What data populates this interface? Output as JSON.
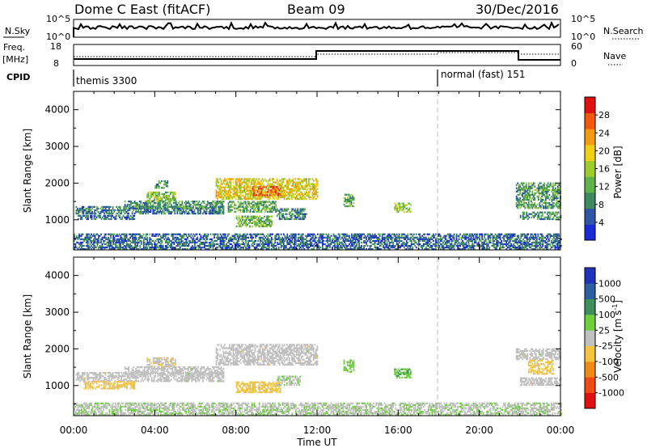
{
  "header": {
    "station": "Dome C East (fitACF)",
    "beam": "Beam 09",
    "date": "30/Dec/2016"
  },
  "status_panels": {
    "nsky_label": "N.Sky",
    "nsearch_label": "N.Search",
    "freq_label_1": "Freq.",
    "freq_label_2": "[MHz]",
    "nave_label": "Nave",
    "cpid_label": "CPID",
    "nsky_ticks": [
      "10^5",
      "10^0"
    ],
    "nsearch_ticks": [
      "10^5",
      "10^0"
    ],
    "freq_ticks": [
      "18",
      "8"
    ],
    "nave_ticks": [
      "60",
      "0"
    ],
    "cpid_segments": [
      {
        "label": "themis 3300",
        "start_hour": 0,
        "end_hour": 18
      },
      {
        "label": "normal (fast) 151",
        "start_hour": 18,
        "end_hour": 24
      }
    ]
  },
  "axes": {
    "x_ticks": [
      "00:00",
      "04:00",
      "08:00",
      "12:00",
      "16:00",
      "20:00",
      "00:00"
    ],
    "x_label": "Time UT",
    "y_label": "Slant Range [km]",
    "y_ticks": [
      "1000",
      "2000",
      "3000",
      "4000"
    ],
    "power_label": "Power [dB]",
    "power_ticks": [
      "4",
      "8",
      "12",
      "16",
      "20",
      "24",
      "28"
    ],
    "velocity_label": "Velocity [m s",
    "velocity_sup": "-1",
    "velocity_label_end": "]",
    "velocity_ticks": [
      "-1000",
      "-500",
      "-100",
      "-25",
      "25",
      "100",
      "500",
      "1000"
    ]
  },
  "colors": {
    "power_scale": [
      "#1a2bd6",
      "#2f56a6",
      "#3c8a5e",
      "#5fb34a",
      "#9ccc2e",
      "#f0d014",
      "#f29a12",
      "#ef5a10",
      "#e01010"
    ],
    "velocity_scale": [
      "#e01010",
      "#ee4a14",
      "#f08a14",
      "#f4c440",
      "#c0c0c0",
      "#6fcf3c",
      "#3f8f5a",
      "#2a5fa0",
      "#2033b8"
    ]
  },
  "chart_data": [
    {
      "type": "heatmap",
      "name": "Power",
      "x_unit": "hour UT",
      "y_unit": "km",
      "xlim": [
        0,
        24
      ],
      "ylim": [
        180,
        4500
      ],
      "clim": [
        0,
        30
      ],
      "regions": [
        {
          "t": [
            0.1,
            7.4
          ],
          "r": [
            1150,
            1350
          ],
          "v": 7
        },
        {
          "t": [
            0.2,
            3.0
          ],
          "r": [
            1000,
            1100
          ],
          "v": 6
        },
        {
          "t": [
            2.5,
            7.4
          ],
          "r": [
            1300,
            1500
          ],
          "v": 9
        },
        {
          "t": [
            3.6,
            5.0
          ],
          "r": [
            1500,
            1750
          ],
          "v": 14
        },
        {
          "t": [
            4.0,
            4.6
          ],
          "r": [
            1850,
            2050
          ],
          "v": 8
        },
        {
          "t": [
            7.0,
            12.0
          ],
          "r": [
            1550,
            2100
          ],
          "v": 18
        },
        {
          "t": [
            8.8,
            10.2
          ],
          "r": [
            1650,
            1900
          ],
          "v": 24
        },
        {
          "t": [
            7.6,
            10.0
          ],
          "r": [
            1200,
            1500
          ],
          "v": 11
        },
        {
          "t": [
            8.0,
            9.8
          ],
          "r": [
            800,
            1100
          ],
          "v": 12
        },
        {
          "t": [
            10.0,
            11.5
          ],
          "r": [
            1000,
            1300
          ],
          "v": 8
        },
        {
          "t": [
            13.3,
            13.8
          ],
          "r": [
            1350,
            1700
          ],
          "v": 11
        },
        {
          "t": [
            15.8,
            16.6
          ],
          "r": [
            1200,
            1450
          ],
          "v": 15
        },
        {
          "t": [
            21.8,
            24.0
          ],
          "r": [
            1300,
            2000
          ],
          "v": 10
        },
        {
          "t": [
            22.0,
            24.0
          ],
          "r": [
            1000,
            1200
          ],
          "v": 9
        },
        {
          "t": [
            0.0,
            24.0
          ],
          "r": [
            180,
            600
          ],
          "v": 6
        }
      ]
    },
    {
      "type": "heatmap",
      "name": "Velocity",
      "x_unit": "hour UT",
      "y_unit": "km",
      "xlim": [
        0,
        24
      ],
      "ylim": [
        180,
        4500
      ],
      "clim": [
        -1000,
        1000
      ],
      "regions": [
        {
          "t": [
            0.1,
            7.4
          ],
          "r": [
            1100,
            1350
          ],
          "v": 0
        },
        {
          "t": [
            0.5,
            3.0
          ],
          "r": [
            900,
            1100
          ],
          "v": -200
        },
        {
          "t": [
            2.5,
            7.4
          ],
          "r": [
            1300,
            1500
          ],
          "v": 0
        },
        {
          "t": [
            3.6,
            5.0
          ],
          "r": [
            1500,
            1750
          ],
          "v": -60
        },
        {
          "t": [
            7.0,
            12.0
          ],
          "r": [
            1550,
            2100
          ],
          "v": 0
        },
        {
          "t": [
            8.0,
            10.2
          ],
          "r": [
            800,
            1100
          ],
          "v": -200
        },
        {
          "t": [
            10.0,
            11.2
          ],
          "r": [
            1000,
            1250
          ],
          "v": 80
        },
        {
          "t": [
            13.3,
            13.8
          ],
          "r": [
            1350,
            1700
          ],
          "v": 200
        },
        {
          "t": [
            15.8,
            16.6
          ],
          "r": [
            1200,
            1450
          ],
          "v": 250
        },
        {
          "t": [
            21.8,
            24.0
          ],
          "r": [
            1700,
            2000
          ],
          "v": 0
        },
        {
          "t": [
            22.4,
            23.6
          ],
          "r": [
            1300,
            1700
          ],
          "v": -200
        },
        {
          "t": [
            22.0,
            24.0
          ],
          "r": [
            1000,
            1200
          ],
          "v": 0
        },
        {
          "t": [
            0.0,
            24.0
          ],
          "r": [
            180,
            500
          ],
          "v": 60
        }
      ]
    }
  ]
}
